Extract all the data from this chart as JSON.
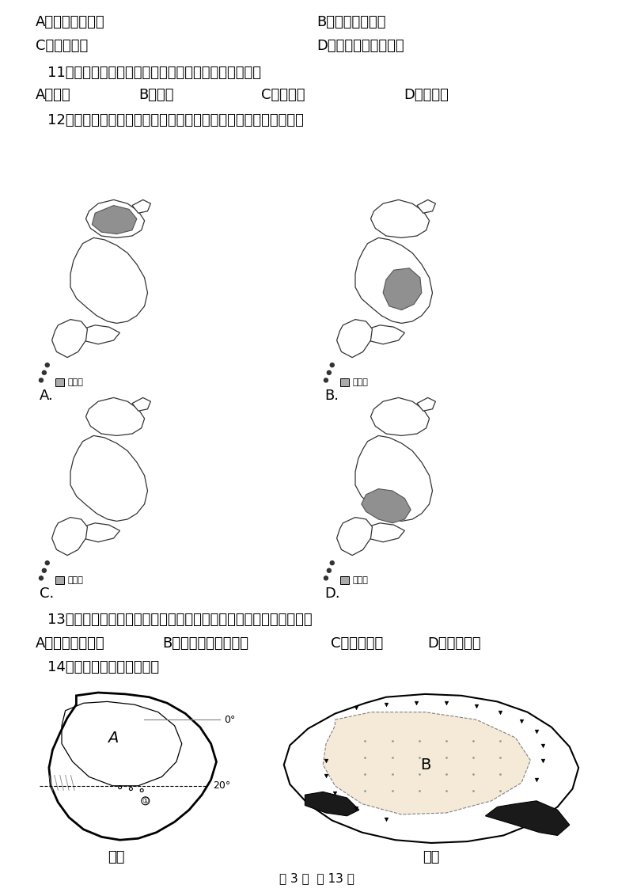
{
  "bg_color": "#ffffff",
  "text_color": "#000000",
  "page_footer": "第 3 页  共 13 页",
  "line1a": "A．带来肥沃土壤",
  "line1b": "B．游客大量增加",
  "line2a": "C．影响交通",
  "line2b": "D．可能带来人员伤亡",
  "q11": "11．下面不属于欧洲三大著名旅游国的国家是（　　）",
  "q11a": "A．法国",
  "q11b": "B．英国",
  "q11c": "C．西班牙",
  "q11d": "D．意大利",
  "q12": "12．四幅图中，能够正确反映日本工业区分布特点的是　（　　）",
  "labelA": "A.",
  "labelB": "B.",
  "labelC": "C.",
  "labelD": "D.",
  "q13": "13．两国人口都主要集中分布在东南沿海地区，原因不包括（　　）",
  "q13a": "A．平原面积广阔",
  "q13b": "B．气候温暖湿润海运",
  "q13c": "C．交通便利",
  "q13d": "D．开发较早",
  "q14": "14．读图，结合所学知识．",
  "label_jia": "甲国",
  "label_yi": "乙国",
  "label_gongye": "工业区"
}
